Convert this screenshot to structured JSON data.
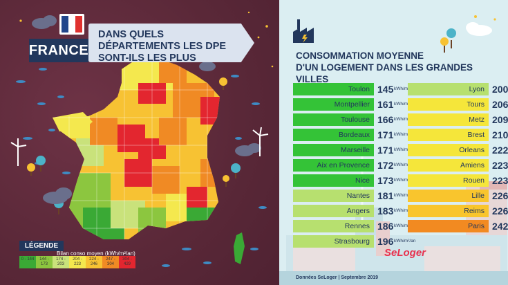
{
  "left": {
    "flag_colors": [
      "#21468b",
      "#ffffff",
      "#e0312f"
    ],
    "banner_label": "FRANCE",
    "question_line1": "DANS QUELS DÉPARTEMENTS LES DPE",
    "question_line2": "SONT-ILS LES PLUS PERFORMANTS?",
    "legend": {
      "title": "LÉGENDE",
      "subtitle": "Bilan conso moyen (kWh/m²/an)",
      "bins": [
        {
          "label": "0 - 144",
          "color": "#3aa935"
        },
        {
          "label": "144 - 173",
          "color": "#8cc63f"
        },
        {
          "label": "174 - 203",
          "color": "#c9e27b"
        },
        {
          "label": "204 - 223",
          "color": "#f4e84e"
        },
        {
          "label": "224 - 246",
          "color": "#f7c233"
        },
        {
          "label": "247 - 304",
          "color": "#f08a24"
        },
        {
          "label": "304 - 429",
          "color": "#e3262f"
        }
      ]
    }
  },
  "right": {
    "title_line1": "CONSOMMATION MOYENNE",
    "title_line2": "D'UN LOGEMENT DANS LES GRANDES VILLES",
    "unit": "kWh/m²/an",
    "left_column": [
      {
        "city": "Toulon",
        "value": "145",
        "color": "#34c337"
      },
      {
        "city": "Montpellier",
        "value": "161",
        "color": "#34c337"
      },
      {
        "city": "Toulouse",
        "value": "166",
        "color": "#34c337"
      },
      {
        "city": "Bordeaux",
        "value": "171",
        "color": "#34c337"
      },
      {
        "city": "Marseille",
        "value": "171",
        "color": "#34c337"
      },
      {
        "city": "Aix en Provence",
        "value": "172",
        "color": "#34c337"
      },
      {
        "city": "Nice",
        "value": "173",
        "color": "#34c337"
      },
      {
        "city": "Nantes",
        "value": "181",
        "color": "#b7e06f"
      },
      {
        "city": "Angers",
        "value": "183",
        "color": "#b7e06f"
      },
      {
        "city": "Rennes",
        "value": "186",
        "color": "#b7e06f"
      },
      {
        "city": "Strasbourg",
        "value": "196",
        "color": "#b7e06f"
      }
    ],
    "right_column": [
      {
        "city": "Lyon",
        "value": "200",
        "color": "#b7e06f"
      },
      {
        "city": "Tours",
        "value": "206",
        "color": "#f5e63a"
      },
      {
        "city": "Metz",
        "value": "209",
        "color": "#f5e63a"
      },
      {
        "city": "Brest",
        "value": "210",
        "color": "#f5e63a"
      },
      {
        "city": "Orleans",
        "value": "222",
        "color": "#f5e63a"
      },
      {
        "city": "Amiens",
        "value": "223",
        "color": "#f5e63a"
      },
      {
        "city": "Rouen",
        "value": "223",
        "color": "#f5e63a"
      },
      {
        "city": "Lille",
        "value": "226",
        "color": "#f9c52d"
      },
      {
        "city": "Reims",
        "value": "226",
        "color": "#f9c52d"
      },
      {
        "city": "Paris",
        "value": "242",
        "color": "#f28a21"
      }
    ],
    "source": "Données SeLoger | Septembre 2019",
    "logo": "SeLoger",
    "logo_accent": "#e8304d"
  }
}
